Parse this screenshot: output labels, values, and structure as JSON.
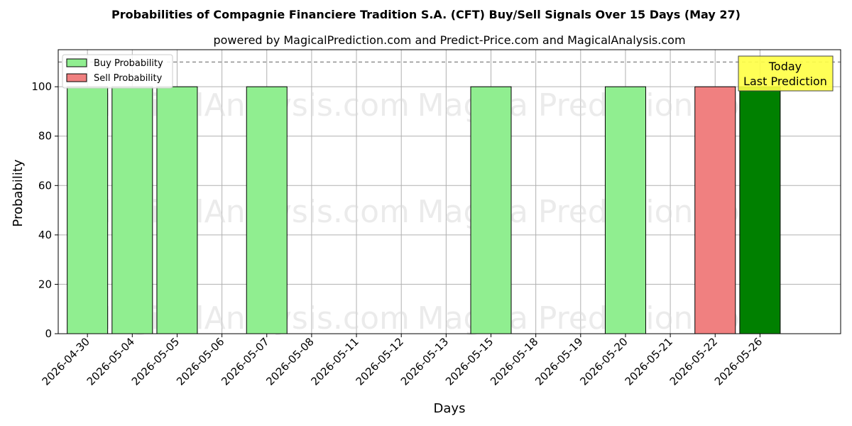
{
  "chart_data": {
    "type": "bar",
    "title": "Probabilities of Compagnie Financiere Tradition S.A. (CFT) Buy/Sell Signals Over 15 Days (May 27)",
    "subtitle": "powered by MagicalPrediction.com and Predict-Price.com and MagicalAnalysis.com",
    "xlabel": "Days",
    "ylabel": "Probability",
    "ylim": [
      0,
      115
    ],
    "yticks": [
      0,
      20,
      40,
      60,
      80,
      100
    ],
    "grid": true,
    "legend_placement": "top-left",
    "categories": [
      "2026-04-30",
      "2026-05-04",
      "2026-05-05",
      "2026-05-06",
      "2026-05-07",
      "2026-05-08",
      "2026-05-11",
      "2026-05-12",
      "2026-05-13",
      "2026-05-15",
      "2026-05-18",
      "2026-05-19",
      "2026-05-20",
      "2026-05-21",
      "2026-05-22",
      "2026-05-26"
    ],
    "series": [
      {
        "name": "Buy Probability",
        "color": "#90ee90",
        "values": [
          100,
          100,
          100,
          0,
          100,
          0,
          0,
          0,
          0,
          100,
          0,
          0,
          100,
          0,
          0,
          100
        ]
      },
      {
        "name": "Sell Probability",
        "color": "#f08080",
        "values": [
          0,
          0,
          0,
          0,
          0,
          0,
          0,
          0,
          0,
          0,
          0,
          0,
          0,
          0,
          100,
          0
        ]
      }
    ],
    "highlight": {
      "category": "2026-05-26",
      "color": "#008000"
    },
    "reference_line": {
      "y": 110,
      "style": "dashed"
    },
    "annotation": {
      "lines": [
        "Today",
        "Last Prediction"
      ],
      "background": "#ffff44"
    },
    "watermarks": [
      "MagicalAnalysis.com",
      "Magica Prediction.com"
    ]
  }
}
